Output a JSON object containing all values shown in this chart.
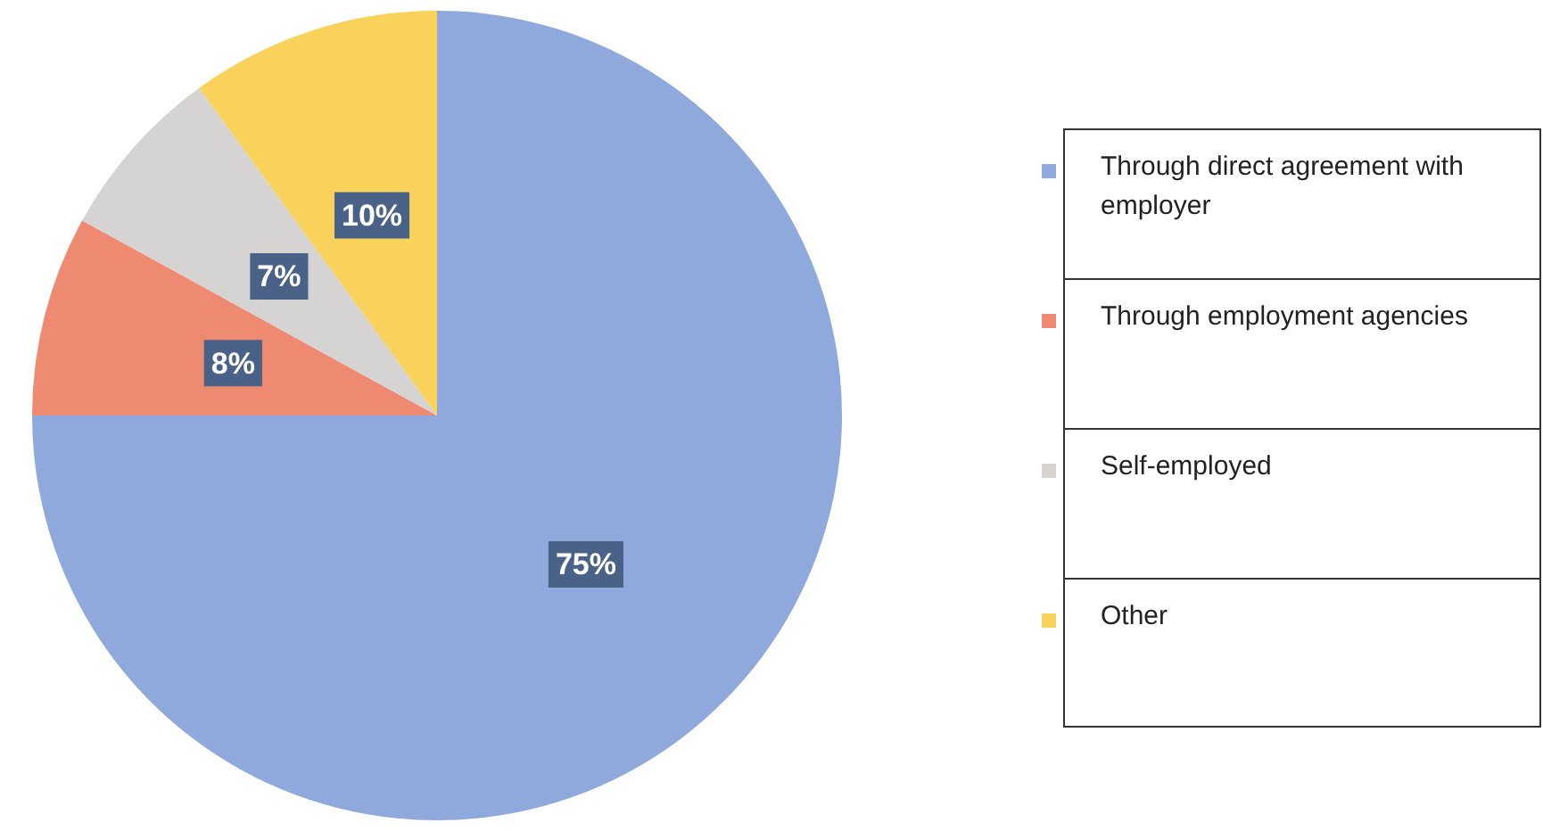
{
  "chart_data": {
    "type": "pie",
    "categories": [
      "Through direct agreement with employer",
      "Through employment agencies",
      "Self-employed",
      "Other"
    ],
    "values": [
      75,
      8,
      7,
      10
    ],
    "colors": [
      "#8fa9dc",
      "#ef8a72",
      "#d6d3d3",
      "#f8d25a"
    ],
    "value_labels": [
      "75%",
      "8%",
      "7%",
      "10%"
    ],
    "legend": "right"
  }
}
